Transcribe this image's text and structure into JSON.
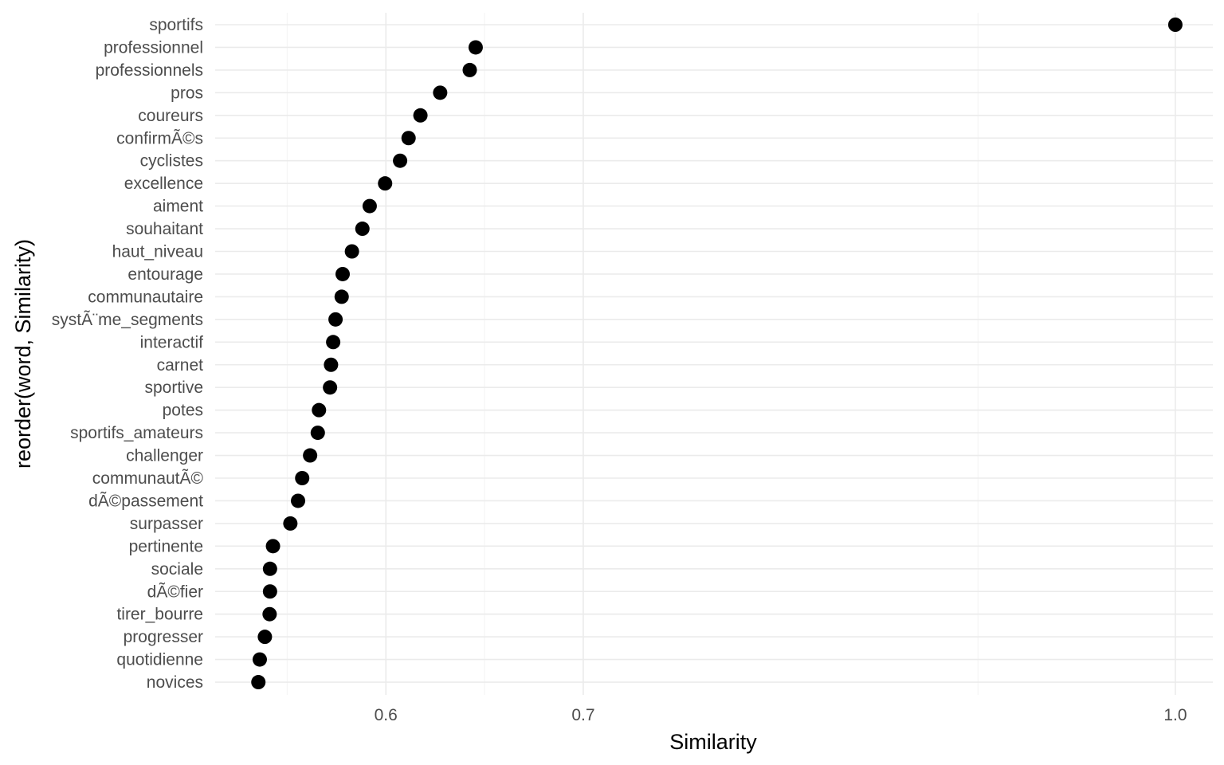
{
  "chart_data": {
    "type": "scatter",
    "xlabel": "Similarity",
    "ylabel": "reorder(word, Similarity)",
    "x_tick_values": [
      0.6,
      0.7,
      1.0
    ],
    "x_tick_labels": [
      "0.6",
      "0.7",
      "1.0"
    ],
    "x_minor_values": [
      0.55,
      0.65,
      0.9
    ],
    "xlim": [
      0.5135,
      1.019
    ],
    "grid": true,
    "categories": [
      "sportifs",
      "professionnel",
      "professionnels",
      "pros",
      "coureurs",
      "confirmÃ©s",
      "cyclistes",
      "excellence",
      "aiment",
      "souhaitant",
      "haut_niveau",
      "entourage",
      "communautaire",
      "systÃ¨me_segments",
      "interactif",
      "carnet",
      "sportive",
      "potes",
      "sportifs_amateurs",
      "challenger",
      "communautÃ©",
      "dÃ©passement",
      "surpasser",
      "pertinente",
      "sociale",
      "dÃ©fier",
      "tirer_bourre",
      "progresser",
      "quotidienne",
      "novices"
    ],
    "values": [
      1.0,
      0.6455,
      0.6425,
      0.6275,
      0.6175,
      0.6115,
      0.6072,
      0.5996,
      0.5918,
      0.5881,
      0.5828,
      0.5781,
      0.5776,
      0.5745,
      0.5733,
      0.5722,
      0.5717,
      0.5661,
      0.5655,
      0.5616,
      0.5576,
      0.5555,
      0.5516,
      0.5428,
      0.5413,
      0.5413,
      0.5411,
      0.5387,
      0.5361,
      0.5354
    ],
    "point_color": "#000000",
    "grid_major_color": "#ebebeb",
    "grid_minor_color": "#f5f5f5"
  }
}
